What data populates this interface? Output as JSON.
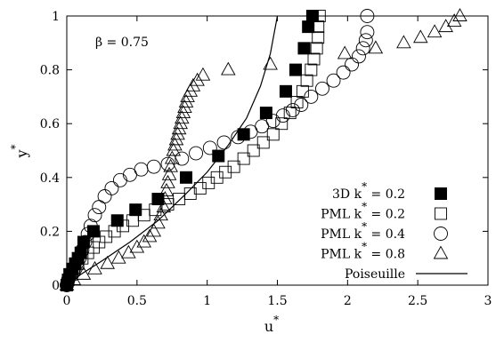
{
  "chart_data": {
    "type": "scatter",
    "xlabel": "u",
    "xlabel_sup": "*",
    "ylabel": "y",
    "ylabel_sup": "*",
    "xlim": [
      0,
      3
    ],
    "ylim": [
      0,
      1
    ],
    "xticks": [
      "0",
      "0.5",
      "1",
      "1.5",
      "2",
      "2.5",
      "3"
    ],
    "yticks": [
      "0",
      "0.2",
      "0.4",
      "0.6",
      "0.8",
      "1"
    ],
    "annotation": "β = 0.75",
    "legend_position": "bottom-right",
    "series": [
      {
        "name": "3D k* = 0.2",
        "legend": {
          "main": "3D  k",
          "sub": "*",
          "rest": " = 0.2"
        },
        "marker": "filled-square",
        "x": [
          0,
          0.01,
          0.02,
          0.04,
          0.06,
          0.08,
          0.1,
          0.12,
          0.19,
          0.36,
          0.49,
          0.65,
          0.85,
          1.08,
          1.26,
          1.42,
          1.56,
          1.63,
          1.69,
          1.72,
          1.75
        ],
        "y": [
          0,
          0.02,
          0.04,
          0.06,
          0.08,
          0.1,
          0.12,
          0.16,
          0.2,
          0.24,
          0.28,
          0.32,
          0.4,
          0.48,
          0.56,
          0.64,
          0.72,
          0.8,
          0.88,
          0.96,
          1.0
        ]
      },
      {
        "name": "PML k* = 0.2",
        "legend": {
          "main": "PML k",
          "sub": "*",
          "rest": " = 0.2"
        },
        "marker": "open-square",
        "x": [
          0,
          0.01,
          0.03,
          0.05,
          0.08,
          0.11,
          0.15,
          0.19,
          0.23,
          0.28,
          0.34,
          0.4,
          0.47,
          0.55,
          0.63,
          0.72,
          0.8,
          0.88,
          0.95,
          1.01,
          1.07,
          1.13,
          1.19,
          1.26,
          1.33,
          1.4,
          1.47,
          1.53,
          1.59,
          1.64,
          1.68,
          1.71,
          1.74,
          1.76,
          1.78,
          1.79,
          1.79,
          1.8
        ],
        "y": [
          0,
          0.02,
          0.04,
          0.06,
          0.08,
          0.1,
          0.12,
          0.14,
          0.16,
          0.18,
          0.2,
          0.22,
          0.24,
          0.26,
          0.28,
          0.3,
          0.32,
          0.34,
          0.36,
          0.38,
          0.4,
          0.42,
          0.44,
          0.47,
          0.5,
          0.53,
          0.56,
          0.6,
          0.64,
          0.68,
          0.72,
          0.76,
          0.8,
          0.84,
          0.88,
          0.92,
          0.96,
          1.0
        ]
      },
      {
        "name": "PML k* = 0.4",
        "legend": {
          "main": "PML k",
          "sub": "*",
          "rest": " = 0.4"
        },
        "marker": "open-circle",
        "x": [
          0,
          0.01,
          0.03,
          0.05,
          0.07,
          0.09,
          0.11,
          0.13,
          0.15,
          0.17,
          0.2,
          0.23,
          0.27,
          0.32,
          0.38,
          0.45,
          0.53,
          0.62,
          0.72,
          0.82,
          0.92,
          1.02,
          1.12,
          1.22,
          1.31,
          1.39,
          1.47,
          1.54,
          1.61,
          1.67,
          1.74,
          1.82,
          1.9,
          1.97,
          2.03,
          2.08,
          2.11,
          2.13,
          2.14,
          2.14
        ],
        "y": [
          0,
          0.02,
          0.04,
          0.06,
          0.08,
          0.1,
          0.13,
          0.16,
          0.19,
          0.22,
          0.26,
          0.29,
          0.33,
          0.36,
          0.39,
          0.41,
          0.43,
          0.44,
          0.45,
          0.47,
          0.49,
          0.51,
          0.53,
          0.55,
          0.57,
          0.59,
          0.61,
          0.63,
          0.65,
          0.67,
          0.7,
          0.73,
          0.76,
          0.79,
          0.82,
          0.85,
          0.88,
          0.91,
          0.94,
          1.0
        ]
      },
      {
        "name": "PML k* = 0.8",
        "legend": {
          "main": "PML k",
          "sub": "*",
          "rest": " = 0.8"
        },
        "marker": "open-triangle",
        "x": [
          0,
          0.05,
          0.12,
          0.2,
          0.29,
          0.37,
          0.44,
          0.5,
          0.55,
          0.59,
          0.62,
          0.65,
          0.67,
          0.69,
          0.7,
          0.71,
          0.72,
          0.73,
          0.74,
          0.75,
          0.76,
          0.77,
          0.78,
          0.79,
          0.8,
          0.81,
          0.82,
          0.83,
          0.84,
          0.85,
          0.86,
          0.88,
          0.9,
          0.93,
          0.97,
          1.15,
          1.45,
          1.98,
          2.2,
          2.4,
          2.52,
          2.62,
          2.7,
          2.76,
          2.8
        ],
        "y": [
          0,
          0.02,
          0.04,
          0.06,
          0.08,
          0.1,
          0.12,
          0.14,
          0.16,
          0.18,
          0.2,
          0.23,
          0.26,
          0.29,
          0.32,
          0.35,
          0.38,
          0.41,
          0.44,
          0.47,
          0.5,
          0.52,
          0.54,
          0.56,
          0.58,
          0.6,
          0.62,
          0.64,
          0.66,
          0.68,
          0.7,
          0.72,
          0.74,
          0.76,
          0.78,
          0.8,
          0.82,
          0.86,
          0.88,
          0.9,
          0.92,
          0.94,
          0.96,
          0.98,
          1.0
        ]
      },
      {
        "name": "Poiseuille",
        "legend": {
          "main": "Poiseuille",
          "sub": "",
          "rest": ""
        },
        "marker": "line",
        "x": [
          0,
          0.1,
          0.25,
          0.45,
          0.65,
          0.85,
          1.0,
          1.15,
          1.28,
          1.38,
          1.45,
          1.5
        ],
        "y": [
          0,
          0.04,
          0.09,
          0.16,
          0.24,
          0.34,
          0.42,
          0.52,
          0.62,
          0.74,
          0.86,
          1.0
        ]
      }
    ]
  }
}
